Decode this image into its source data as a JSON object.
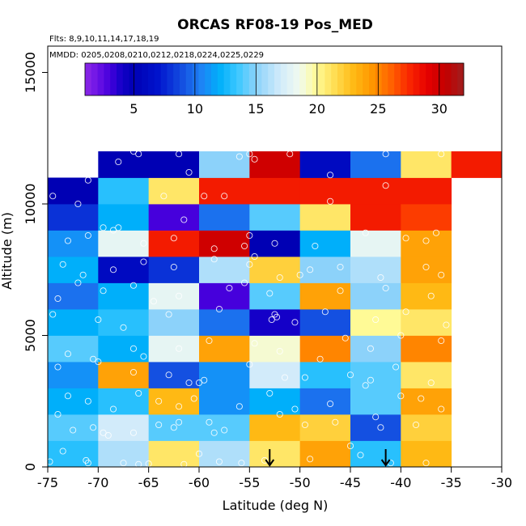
{
  "chart_data": {
    "type": "heatmap",
    "title": "ORCAS RF08-19 Pos_MED",
    "flights_note": "Flts: 8,9,10,11,14,17,18,19",
    "dates_note": "MMDD: 0205,0208,0210,0212,0218,0224,0225,0229",
    "xlabel": "Latitude (deg N)",
    "ylabel": "Altitude (m)",
    "xlim": [
      -75,
      -30
    ],
    "ylim": [
      0,
      16000
    ],
    "x_ticks": [
      -75,
      -70,
      -65,
      -60,
      -55,
      -50,
      -45,
      -40,
      -35,
      -30
    ],
    "y_ticks": [
      0,
      5000,
      10000,
      15000
    ],
    "colorbar": {
      "min": 1,
      "max": 32,
      "ticks": [
        5,
        10,
        15,
        20,
        25,
        30
      ]
    },
    "x_bin_edges": [
      -75,
      -70,
      -65,
      -60,
      -55,
      -50,
      -45,
      -40,
      -35,
      -30
    ],
    "y_bin_edges": [
      0,
      1000,
      2000,
      3000,
      4000,
      5000,
      6000,
      7000,
      8000,
      9000,
      10000,
      11000,
      12000
    ],
    "cells": [
      [
        13,
        16,
        21,
        16,
        21,
        24,
        13,
        23,
        0
      ],
      [
        14,
        17,
        14,
        14,
        23,
        22,
        9,
        22,
        0
      ],
      [
        12,
        13,
        23,
        11,
        12,
        10,
        14,
        24,
        0
      ],
      [
        11,
        24,
        9,
        11,
        17,
        13,
        14,
        21,
        0
      ],
      [
        14,
        12,
        18,
        24,
        19,
        25,
        15,
        25,
        0
      ],
      [
        12,
        13,
        15,
        10,
        4,
        9,
        20,
        21,
        0
      ],
      [
        10,
        12,
        18,
        3,
        14,
        24,
        15,
        23,
        0
      ],
      [
        12,
        6,
        8,
        16,
        22,
        15,
        16,
        24,
        0
      ],
      [
        11,
        18,
        28,
        30,
        5,
        12,
        18,
        24,
        0
      ],
      [
        8,
        12,
        3,
        10,
        14,
        21,
        28,
        27,
        0
      ],
      [
        5,
        13,
        21,
        28,
        28,
        28,
        28,
        28,
        0
      ],
      [
        0,
        5,
        5,
        15,
        30,
        6,
        10,
        21,
        28
      ]
    ],
    "arrows_latitude": [
      -53,
      -41.5
    ],
    "points": [
      [
        -74.8,
        200
      ],
      [
        -73.5,
        600
      ],
      [
        -71.2,
        250
      ],
      [
        -71.0,
        150
      ],
      [
        -67.5,
        150
      ],
      [
        -66.0,
        100
      ],
      [
        -65.0,
        120
      ],
      [
        -61.5,
        100
      ],
      [
        -60.0,
        500
      ],
      [
        -58.0,
        200
      ],
      [
        -55.8,
        150
      ],
      [
        -53.5,
        250
      ],
      [
        -49.0,
        300
      ],
      [
        -45.0,
        800
      ],
      [
        -44.0,
        450
      ],
      [
        -41.0,
        150
      ],
      [
        -37.5,
        150
      ],
      [
        -74.0,
        2000
      ],
      [
        -72.5,
        1400
      ],
      [
        -70.5,
        1500
      ],
      [
        -69.5,
        1300
      ],
      [
        -66.5,
        1300
      ],
      [
        -64.0,
        1600
      ],
      [
        -62.5,
        1500
      ],
      [
        -59.0,
        1700
      ],
      [
        -57.5,
        1400
      ],
      [
        -52.0,
        2000
      ],
      [
        -49.5,
        1600
      ],
      [
        -46.5,
        1700
      ],
      [
        -42.5,
        1900
      ],
      [
        -42.0,
        1500
      ],
      [
        -38.5,
        1600
      ],
      [
        -36.0,
        2200
      ],
      [
        -69.0,
        1200
      ],
      [
        -62.0,
        1700
      ],
      [
        -58.5,
        1300
      ],
      [
        -73.0,
        2700
      ],
      [
        -71.0,
        2500
      ],
      [
        -68.5,
        2200
      ],
      [
        -64.0,
        2500
      ],
      [
        -60.5,
        2600
      ],
      [
        -56.0,
        2300
      ],
      [
        -53.0,
        2800
      ],
      [
        -50.5,
        2200
      ],
      [
        -47.0,
        2400
      ],
      [
        -43.5,
        3100
      ],
      [
        -40.0,
        2700
      ],
      [
        -38.0,
        2600
      ],
      [
        -66.0,
        2800
      ],
      [
        -62.0,
        2300
      ],
      [
        -74.0,
        3800
      ],
      [
        -70.5,
        4100
      ],
      [
        -66.5,
        3600
      ],
      [
        -63.0,
        3500
      ],
      [
        -61.0,
        3200
      ],
      [
        -59.5,
        3300
      ],
      [
        -55.0,
        3900
      ],
      [
        -51.5,
        3400
      ],
      [
        -49.5,
        3400
      ],
      [
        -45.0,
        3500
      ],
      [
        -43.0,
        3300
      ],
      [
        -40.5,
        3800
      ],
      [
        -37.0,
        3200
      ],
      [
        -60.0,
        3200
      ],
      [
        -73.0,
        4300
      ],
      [
        -70.0,
        4000
      ],
      [
        -66.5,
        4500
      ],
      [
        -65.5,
        4200
      ],
      [
        -62.0,
        4500
      ],
      [
        -59.0,
        4800
      ],
      [
        -54.5,
        4700
      ],
      [
        -52.0,
        4400
      ],
      [
        -48.0,
        4100
      ],
      [
        -45.5,
        4900
      ],
      [
        -43.0,
        4500
      ],
      [
        -40.0,
        5000
      ],
      [
        -36.0,
        4800
      ],
      [
        -74.5,
        5800
      ],
      [
        -70.0,
        5600
      ],
      [
        -67.5,
        5300
      ],
      [
        -63.0,
        5800
      ],
      [
        -58.0,
        6000
      ],
      [
        -52.5,
        5800
      ],
      [
        -52.8,
        5600
      ],
      [
        -52.3,
        5700
      ],
      [
        -50.5,
        5500
      ],
      [
        -47.5,
        5900
      ],
      [
        -42.5,
        5600
      ],
      [
        -39.5,
        5900
      ],
      [
        -35.5,
        5400
      ],
      [
        -74.0,
        6400
      ],
      [
        -72.0,
        7000
      ],
      [
        -69.5,
        6700
      ],
      [
        -66.5,
        6900
      ],
      [
        -62.0,
        6500
      ],
      [
        -57.0,
        6800
      ],
      [
        -55.5,
        7000
      ],
      [
        -53.0,
        6600
      ],
      [
        -50.0,
        7300
      ],
      [
        -46.0,
        6700
      ],
      [
        -41.5,
        6800
      ],
      [
        -37.0,
        6500
      ],
      [
        -64.5,
        6300
      ],
      [
        -73.5,
        7700
      ],
      [
        -71.5,
        7300
      ],
      [
        -68.5,
        7500
      ],
      [
        -65.5,
        7800
      ],
      [
        -62.5,
        7600
      ],
      [
        -58.5,
        7900
      ],
      [
        -55.0,
        7700
      ],
      [
        -54.5,
        8000
      ],
      [
        -52.0,
        7200
      ],
      [
        -49.0,
        7500
      ],
      [
        -46.0,
        7600
      ],
      [
        -42.0,
        7200
      ],
      [
        -37.5,
        7600
      ],
      [
        -36.0,
        7300
      ],
      [
        -73.0,
        8600
      ],
      [
        -71.0,
        8800
      ],
      [
        -68.5,
        9000
      ],
      [
        -65.5,
        8500
      ],
      [
        -62.5,
        8700
      ],
      [
        -58.5,
        8300
      ],
      [
        -55.0,
        8800
      ],
      [
        -52.5,
        8500
      ],
      [
        -55.5,
        8400
      ],
      [
        -48.5,
        8400
      ],
      [
        -43.5,
        8900
      ],
      [
        -39.5,
        8700
      ],
      [
        -37.5,
        8600
      ],
      [
        -36.5,
        8900
      ],
      [
        -74.5,
        10300
      ],
      [
        -72.0,
        10000
      ],
      [
        -69.5,
        9100
      ],
      [
        -68.0,
        9100
      ],
      [
        -63.5,
        10300
      ],
      [
        -61.5,
        9400
      ],
      [
        -59.5,
        10300
      ],
      [
        -57.5,
        10300
      ],
      [
        -47.0,
        10100
      ],
      [
        -41.5,
        10700
      ],
      [
        -71.0,
        10900
      ],
      [
        -68.0,
        11600
      ],
      [
        -66.0,
        11900
      ],
      [
        -62.0,
        11900
      ],
      [
        -61.0,
        11200
      ],
      [
        -56.0,
        11800
      ],
      [
        -55.0,
        11900
      ],
      [
        -51.0,
        11900
      ],
      [
        -47.0,
        11100
      ],
      [
        -41.5,
        11900
      ],
      [
        -36.0,
        11900
      ],
      [
        -66.5,
        12000
      ],
      [
        -54.5,
        11700
      ]
    ]
  }
}
